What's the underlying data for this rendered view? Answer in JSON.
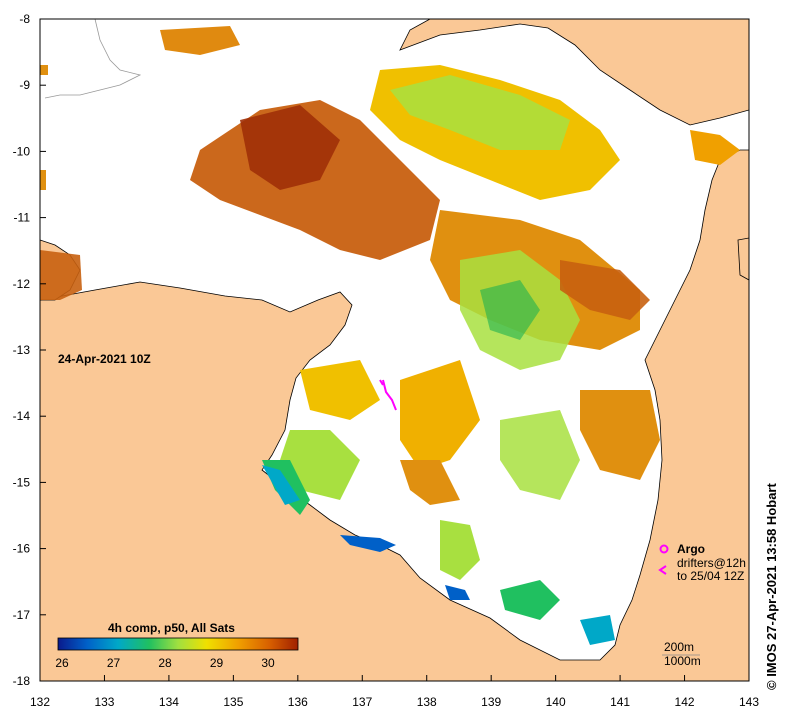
{
  "map": {
    "date_label": "24-Apr-2021 10Z",
    "x_ticks": [
      "132",
      "133",
      "134",
      "135",
      "136",
      "137",
      "138",
      "139",
      "140",
      "141",
      "142",
      "143"
    ],
    "y_ticks": [
      "-8",
      "-9",
      "-10",
      "-11",
      "-12",
      "-13",
      "-14",
      "-15",
      "-16",
      "-17",
      "-18"
    ],
    "colorbar": {
      "title": "4h comp, p50, All Sats",
      "ticks": [
        "26",
        "27",
        "28",
        "29",
        "30"
      ],
      "colors": [
        "#0a1a8c",
        "#0060c8",
        "#00a8c8",
        "#20c060",
        "#a0e040",
        "#f0e000",
        "#f0a000",
        "#d86000",
        "#a02000"
      ]
    },
    "legend": {
      "argo": "Argo",
      "drifters_line1": "drifters@12h",
      "drifters_line2": "to 25/04 12Z"
    },
    "depth_legend": {
      "d1": "200m",
      "d2": "1000m"
    },
    "credit": "© IMOS 27-Apr-2021 13:58 Hobart",
    "colors": {
      "land": "#fac896",
      "sea": "#ffffff",
      "argo": "#ff00ff"
    }
  }
}
